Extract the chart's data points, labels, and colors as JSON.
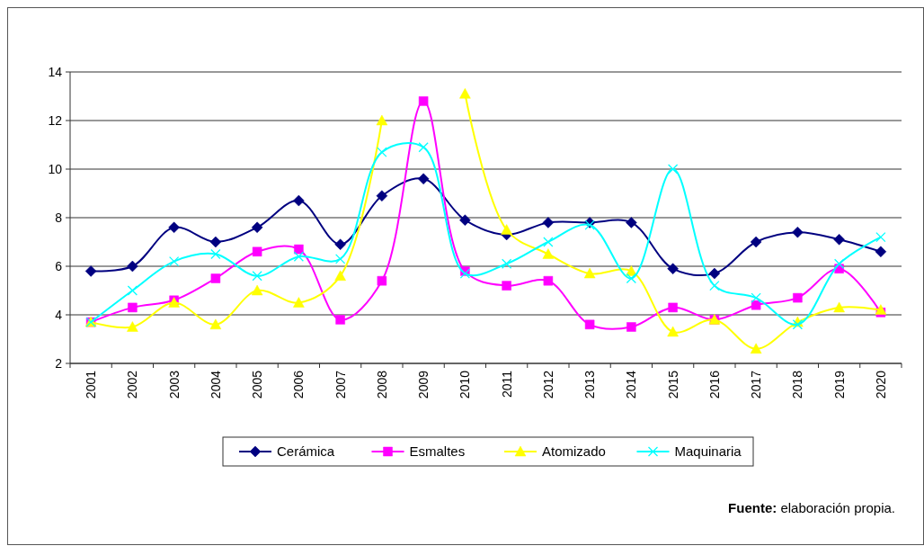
{
  "chart_data": {
    "type": "line",
    "categories": [
      "2001",
      "2002",
      "2003",
      "2004",
      "2005",
      "2006",
      "2007",
      "2008",
      "2009",
      "2010",
      "2011",
      "2012",
      "2013",
      "2014",
      "2015",
      "2016",
      "2017",
      "2018",
      "2019",
      "2020"
    ],
    "ylim": [
      2,
      14
    ],
    "yticks": [
      2,
      4,
      6,
      8,
      10,
      12,
      14
    ],
    "grid": "y",
    "legend": "bottom",
    "annotations": [
      "Fuente: elaboración propia."
    ],
    "series": [
      {
        "name": "Cerámica",
        "color": "#000080",
        "marker": "diamond",
        "values": [
          5.8,
          6.0,
          7.6,
          7.0,
          7.6,
          8.7,
          6.9,
          8.9,
          9.6,
          7.9,
          7.3,
          7.8,
          7.8,
          7.8,
          5.9,
          5.7,
          7.0,
          7.4,
          7.1,
          6.6
        ]
      },
      {
        "name": "Esmaltes",
        "color": "#ff00ff",
        "marker": "square",
        "values": [
          3.7,
          4.3,
          4.6,
          5.5,
          6.6,
          6.7,
          3.8,
          5.4,
          12.8,
          5.8,
          5.2,
          5.4,
          3.6,
          3.5,
          4.3,
          3.8,
          4.4,
          4.7,
          5.9,
          4.1
        ]
      },
      {
        "name": "Atomizado",
        "color": "#ffff00",
        "marker": "triangle",
        "values": [
          3.7,
          3.5,
          4.5,
          3.6,
          5.0,
          4.5,
          5.6,
          12.0,
          null,
          13.1,
          7.5,
          6.5,
          5.7,
          5.8,
          3.3,
          3.8,
          2.6,
          3.7,
          4.3,
          4.2
        ]
      },
      {
        "name": "Maquinaria",
        "color": "#00ffff",
        "marker": "cross",
        "values": [
          3.7,
          5.0,
          6.2,
          6.5,
          5.6,
          6.4,
          6.3,
          10.7,
          10.9,
          5.7,
          6.1,
          7.0,
          7.7,
          5.5,
          10.0,
          5.2,
          4.7,
          3.6,
          6.1,
          7.2
        ]
      }
    ]
  }
}
